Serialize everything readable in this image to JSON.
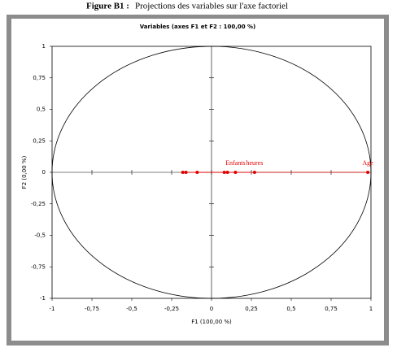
{
  "caption": {
    "label": "Figure B1 :",
    "text": "Projections des variables sur l'axe factoriel"
  },
  "chart_data": {
    "type": "scatter",
    "title": "Variables (axes F1 et F2 : 100,00 %)",
    "xlabel": "F1 (100,00 %)",
    "ylabel": "F2 (0,00 %)",
    "xlim": [
      -1,
      1
    ],
    "ylim": [
      -1,
      1
    ],
    "xticks": [
      -1,
      {
        "value": -0.75,
        "label": "-0,75"
      },
      {
        "value": -0.5,
        "label": "-0,5"
      },
      {
        "value": -0.25,
        "label": "-0,25"
      },
      0,
      {
        "value": 0.25,
        "label": "0,25"
      },
      {
        "value": 0.5,
        "label": "0,5"
      },
      {
        "value": 0.75,
        "label": "0,75"
      },
      1
    ],
    "yticks": [
      -1,
      {
        "value": -0.75,
        "label": "-0,75"
      },
      {
        "value": -0.5,
        "label": "-0,5"
      },
      {
        "value": -0.25,
        "label": "-0,25"
      },
      0,
      {
        "value": 0.25,
        "label": "0,25"
      },
      {
        "value": 0.5,
        "label": "0,5"
      },
      {
        "value": 0.75,
        "label": "0,75"
      },
      1
    ],
    "series": [
      {
        "color": "#e00000",
        "x": [
          -0.18,
          -0.16,
          -0.09,
          0.08,
          0.1,
          0.15,
          0.27,
          0.98
        ],
        "values": [
          0,
          0,
          0,
          0,
          0,
          0,
          0,
          0
        ],
        "labels": [
          null,
          null,
          null,
          null,
          null,
          "Enfants",
          "heures",
          "Age"
        ]
      }
    ]
  }
}
